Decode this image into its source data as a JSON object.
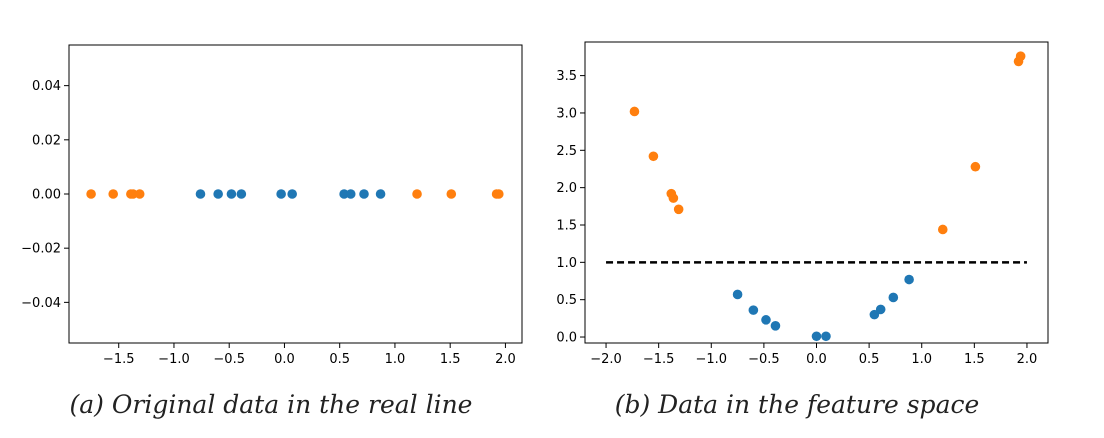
{
  "chart_data": [
    {
      "type": "scatter",
      "caption": "(a) Original data in the real line",
      "xlim": [
        -1.95,
        2.15
      ],
      "ylim": [
        -0.055,
        0.055
      ],
      "xticks": [
        -1.5,
        -1.0,
        -0.5,
        0.0,
        0.5,
        1.0,
        1.5,
        2.0
      ],
      "xtick_labels": [
        "−1.5",
        "−1.0",
        "−0.5",
        "0.0",
        "0.5",
        "1.0",
        "1.5",
        "2.0"
      ],
      "yticks": [
        0.04,
        0.02,
        0.0,
        -0.02,
        -0.04
      ],
      "ytick_labels": [
        "0.04",
        "0.02",
        "0.00",
        "−0.02",
        "−0.04"
      ],
      "grid": false,
      "series": [
        {
          "color": "#ff7f0e",
          "points": [
            [
              -1.75,
              0.0
            ],
            [
              -1.55,
              0.0
            ],
            [
              -1.39,
              0.0
            ],
            [
              -1.37,
              0.0
            ],
            [
              -1.31,
              0.0
            ],
            [
              1.2,
              0.0
            ],
            [
              1.51,
              0.0
            ],
            [
              1.92,
              0.0
            ],
            [
              1.94,
              0.0
            ]
          ]
        },
        {
          "color": "#1f77b4",
          "points": [
            [
              -0.76,
              0.0
            ],
            [
              -0.6,
              0.0
            ],
            [
              -0.48,
              0.0
            ],
            [
              -0.39,
              0.0
            ],
            [
              -0.03,
              0.0
            ],
            [
              0.07,
              0.0
            ],
            [
              0.54,
              0.0
            ],
            [
              0.6,
              0.0
            ],
            [
              0.72,
              0.0
            ],
            [
              0.87,
              0.0
            ]
          ]
        }
      ]
    },
    {
      "type": "scatter",
      "caption": "(b) Data in the feature space",
      "xlim": [
        -2.2,
        2.2
      ],
      "ylim": [
        -0.08,
        3.95
      ],
      "xticks": [
        -2.0,
        -1.5,
        -1.0,
        -0.5,
        0.0,
        0.5,
        1.0,
        1.5,
        2.0
      ],
      "xtick_labels": [
        "−2.0",
        "−1.5",
        "−1.0",
        "−0.5",
        "0.0",
        "0.5",
        "1.0",
        "1.5",
        "2.0"
      ],
      "yticks": [
        0.0,
        0.5,
        1.0,
        1.5,
        2.0,
        2.5,
        3.0,
        3.5
      ],
      "ytick_labels": [
        "0.0",
        "0.5",
        "1.0",
        "1.5",
        "2.0",
        "2.5",
        "3.0",
        "3.5"
      ],
      "grid": false,
      "threshold_line": {
        "y": 1.0,
        "x_range": [
          -2.0,
          2.0
        ],
        "style": "dashed",
        "color": "#000000"
      },
      "series": [
        {
          "color": "#ff7f0e",
          "points": [
            [
              -1.73,
              3.02
            ],
            [
              -1.55,
              2.42
            ],
            [
              -1.38,
              1.92
            ],
            [
              -1.36,
              1.86
            ],
            [
              -1.31,
              1.71
            ],
            [
              1.2,
              1.44
            ],
            [
              1.51,
              2.28
            ],
            [
              1.92,
              3.69
            ],
            [
              1.94,
              3.76
            ]
          ]
        },
        {
          "color": "#1f77b4",
          "points": [
            [
              -0.75,
              0.57
            ],
            [
              -0.6,
              0.36
            ],
            [
              -0.48,
              0.23
            ],
            [
              -0.39,
              0.15
            ],
            [
              0.0,
              0.01
            ],
            [
              0.09,
              0.01
            ],
            [
              0.55,
              0.3
            ],
            [
              0.61,
              0.37
            ],
            [
              0.73,
              0.53
            ],
            [
              0.88,
              0.77
            ]
          ]
        }
      ]
    }
  ]
}
